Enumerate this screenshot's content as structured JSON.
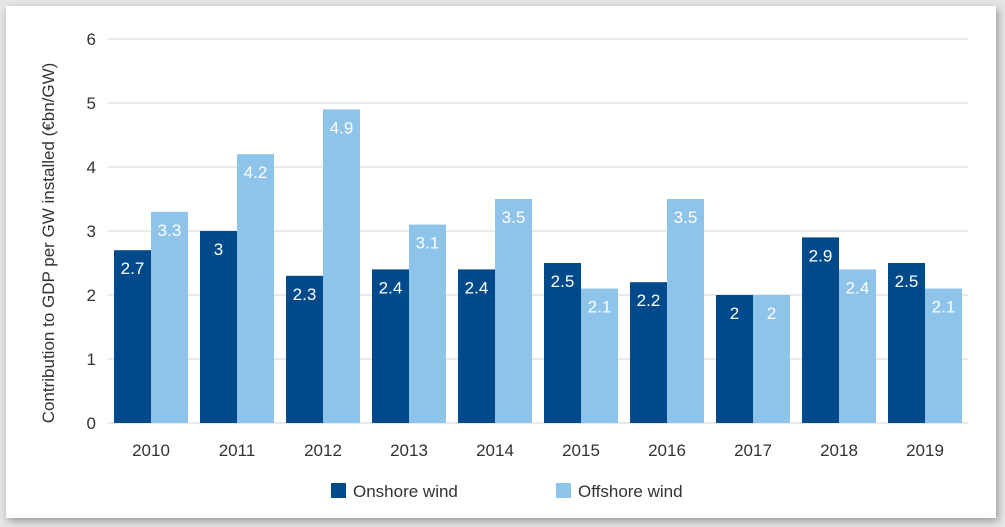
{
  "chart_data": {
    "type": "bar",
    "ylabel": "Contribution to GDP per GW installed (€bn/GW)",
    "ylim": [
      0,
      6
    ],
    "yticks": [
      "0",
      "1",
      "2",
      "3",
      "4",
      "5",
      "6"
    ],
    "categories": [
      "2010",
      "2011",
      "2012",
      "2013",
      "2014",
      "2015",
      "2016",
      "2017",
      "2018",
      "2019"
    ],
    "series": [
      {
        "name": "Onshore wind",
        "color": "#004a8c",
        "values": [
          2.7,
          3,
          2.3,
          2.4,
          2.4,
          2.5,
          2.2,
          2,
          2.9,
          2.5
        ],
        "labels": [
          "2.7",
          "3",
          "2.3",
          "2.4",
          "2.4",
          "2.5",
          "2.2",
          "2",
          "2.9",
          "2.5"
        ]
      },
      {
        "name": "Offshore wind",
        "color": "#8ec3ea",
        "values": [
          3.3,
          4.2,
          4.9,
          3.1,
          3.5,
          2.1,
          3.5,
          2,
          2.4,
          2.1
        ],
        "labels": [
          "3.3",
          "4.2",
          "4.9",
          "3.1",
          "3.5",
          "2.1",
          "3.5",
          "2",
          "2.4",
          "2.1"
        ]
      }
    ],
    "legend_position": "bottom-center",
    "grid": true
  }
}
